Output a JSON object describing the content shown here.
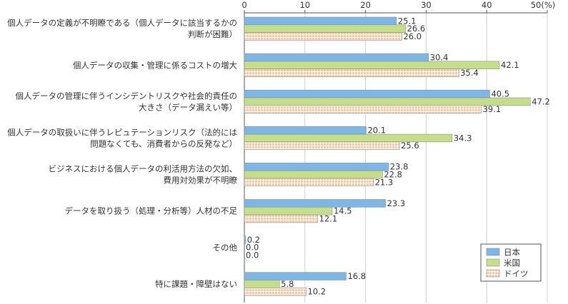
{
  "chart_data": {
    "type": "bar",
    "orientation": "horizontal",
    "xlim": [
      0,
      50
    ],
    "ticks": [
      "0",
      "10",
      "20",
      "30",
      "40",
      "50(%)"
    ],
    "tick_values": [
      0,
      10,
      20,
      30,
      40,
      50
    ],
    "legend_position": "bottom-right",
    "categories": [
      [
        "個人データの定義が不明瞭である（個人データに該当するかの",
        "判断が困難）"
      ],
      [
        "個人データの収集・管理に係るコストの増大"
      ],
      [
        "個人データの管理に伴うインシデントリスクや社会的責任の",
        "大きさ（データ漏えい等）"
      ],
      [
        "個人データの取扱いに伴うレピュテーションリスク（法的には",
        "問題なくても、消費者からの反発など）"
      ],
      [
        "ビジネスにおける個人データの利活用方法の欠如、",
        "費用対効果が不明瞭"
      ],
      [
        "データを取り扱う（処理・分析等）人材の不足"
      ],
      [
        "その他"
      ],
      [
        "特に課題・障壁はない"
      ]
    ],
    "series": [
      {
        "name": "日本",
        "color": "#7eb6e6",
        "pattern": "solid",
        "values": [
          25.1,
          30.4,
          40.5,
          20.1,
          23.8,
          23.3,
          0.2,
          16.8
        ],
        "labels": [
          "25.1",
          "30.4",
          "40.5",
          "20.1",
          "23.8",
          "23.3",
          "0.2",
          "16.8"
        ]
      },
      {
        "name": "米国",
        "color": "#c5de8c",
        "pattern": "solid",
        "values": [
          26.6,
          42.1,
          47.2,
          34.3,
          22.8,
          14.5,
          0.0,
          5.8
        ],
        "labels": [
          "26.6",
          "42.1",
          "47.2",
          "34.3",
          "22.8",
          "14.5",
          "0.0",
          "5.8"
        ]
      },
      {
        "name": "ドイツ",
        "color": "#f5c9a6",
        "pattern": "grid",
        "values": [
          26.0,
          35.4,
          39.1,
          25.6,
          21.3,
          12.1,
          0.0,
          10.2
        ],
        "labels": [
          "26.0",
          "35.4",
          "39.1",
          "25.6",
          "21.3",
          "12.1",
          "0.0",
          "10.2"
        ]
      }
    ]
  }
}
